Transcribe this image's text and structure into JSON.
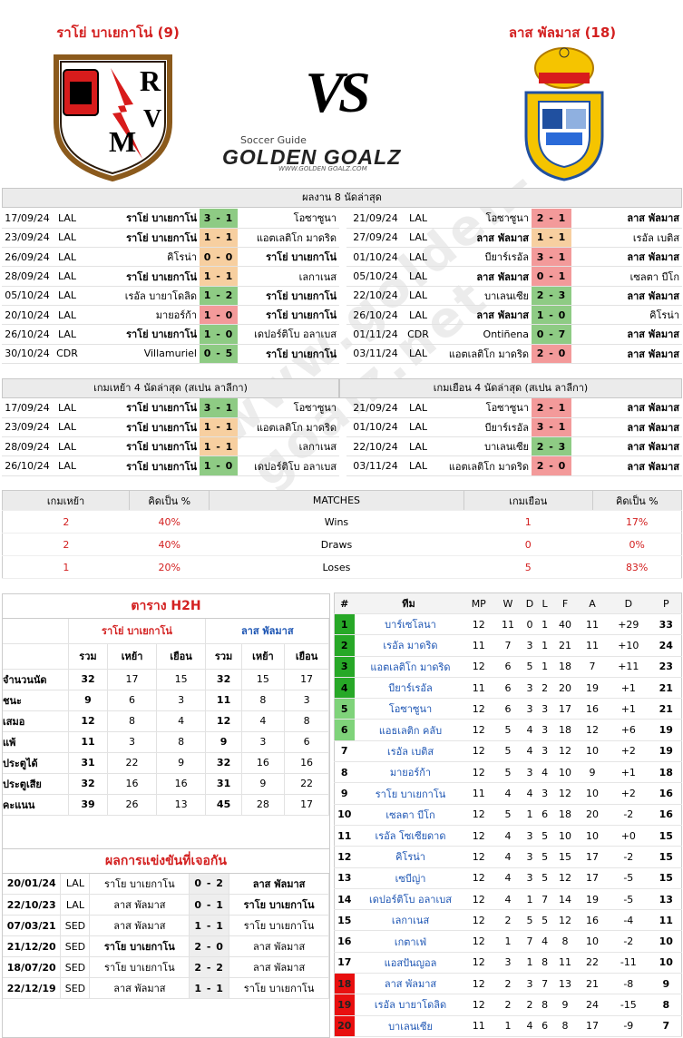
{
  "header": {
    "home_title": "ราโย่ บาเยกาโน่ (9)",
    "away_title": "ลาส พัลมาส (18)",
    "vs": "VS",
    "brand_top": "Soccer Guide",
    "brand": "GOLDEN GOALZ",
    "brand_url": "WWW.GOLDEN GOALZ.COM"
  },
  "home_logo_letters": "RVM",
  "last8": {
    "title": "ผลงาน 8 นัดล่าสุด",
    "home": [
      [
        "17/09/24",
        "LAL",
        "ราโย่ บาเยกาโน่",
        "3 - 1",
        "โอซาซูนา",
        "w",
        "h"
      ],
      [
        "23/09/24",
        "LAL",
        "ราโย่ บาเยกาโน่",
        "1 - 1",
        "แอตเลติโก มาดริด",
        "d",
        "h"
      ],
      [
        "26/09/24",
        "LAL",
        "คิโรน่า",
        "0 - 0",
        "ราโย่ บาเยกาโน่",
        "d",
        "a"
      ],
      [
        "28/09/24",
        "LAL",
        "ราโย่ บาเยกาโน่",
        "1 - 1",
        "เลกาเนส",
        "d",
        "h"
      ],
      [
        "05/10/24",
        "LAL",
        "เรอัล บายาโดลิด",
        "1 - 2",
        "ราโย่ บาเยกาโน่",
        "w",
        "a"
      ],
      [
        "20/10/24",
        "LAL",
        "มายอร์ก้า",
        "1 - 0",
        "ราโย่ บาเยกาโน่",
        "L",
        "a"
      ],
      [
        "26/10/24",
        "LAL",
        "ราโย่ บาเยกาโน่",
        "1 - 0",
        "เดปอร์ติโบ อลาเบส",
        "w",
        "h"
      ],
      [
        "30/10/24",
        "CDR",
        "Villamuriel",
        "0 - 5",
        "ราโย่ บาเยกาโน่",
        "w",
        "a"
      ]
    ],
    "away": [
      [
        "21/09/24",
        "LAL",
        "โอซาซูนา",
        "2 - 1",
        "ลาส พัลมาส",
        "L",
        "a"
      ],
      [
        "27/09/24",
        "LAL",
        "ลาส พัลมาส",
        "1 - 1",
        "เรอัล เบติส",
        "d",
        "h"
      ],
      [
        "01/10/24",
        "LAL",
        "บียาร์เรอัล",
        "3 - 1",
        "ลาส พัลมาส",
        "L",
        "a"
      ],
      [
        "05/10/24",
        "LAL",
        "ลาส พัลมาส",
        "0 - 1",
        "เซลตา บีโก",
        "L",
        "h"
      ],
      [
        "22/10/24",
        "LAL",
        "บาเลนเซีย",
        "2 - 3",
        "ลาส พัลมาส",
        "w",
        "a"
      ],
      [
        "26/10/24",
        "LAL",
        "ลาส พัลมาส",
        "1 - 0",
        "คิโรน่า",
        "w",
        "h"
      ],
      [
        "01/11/24",
        "CDR",
        "Ontiñena",
        "0 - 7",
        "ลาส พัลมาส",
        "w",
        "a"
      ],
      [
        "03/11/24",
        "LAL",
        "แอตเลติโก มาดริด",
        "2 - 0",
        "ลาส พัลมาส",
        "L",
        "a"
      ]
    ]
  },
  "last4": {
    "home_title": "เกมเหย้า 4 นัดล่าสุด (สเปน ลาลีกา)",
    "away_title": "เกมเยือน 4 นัดล่าสุด (สเปน ลาลีกา)",
    "home": [
      [
        "17/09/24",
        "LAL",
        "ราโย่ บาเยกาโน่",
        "3 - 1",
        "โอซาซูนา",
        "w",
        "h"
      ],
      [
        "23/09/24",
        "LAL",
        "ราโย่ บาเยกาโน่",
        "1 - 1",
        "แอตเลติโก มาดริด",
        "d",
        "h"
      ],
      [
        "28/09/24",
        "LAL",
        "ราโย่ บาเยกาโน่",
        "1 - 1",
        "เลกาเนส",
        "d",
        "h"
      ],
      [
        "26/10/24",
        "LAL",
        "ราโย่ บาเยกาโน่",
        "1 - 0",
        "เดปอร์ติโบ อลาเบส",
        "w",
        "h"
      ]
    ],
    "away": [
      [
        "21/09/24",
        "LAL",
        "โอซาซูนา",
        "2 - 1",
        "ลาส พัลมาส",
        "L",
        "a"
      ],
      [
        "01/10/24",
        "LAL",
        "บียาร์เรอัล",
        "3 - 1",
        "ลาส พัลมาส",
        "L",
        "a"
      ],
      [
        "22/10/24",
        "LAL",
        "บาเลนเซีย",
        "2 - 3",
        "ลาส พัลมาส",
        "w",
        "a"
      ],
      [
        "03/11/24",
        "LAL",
        "แอตเลติโก มาดริด",
        "2 - 0",
        "ลาส พัลมาส",
        "L",
        "a"
      ]
    ]
  },
  "summary": {
    "headers": [
      "เกมเหย้า",
      "คิดเป็น %",
      "MATCHES",
      "เกมเยือน",
      "คิดเป็น %"
    ],
    "rows": [
      [
        "2",
        "40%",
        "Wins",
        "1",
        "17%"
      ],
      [
        "2",
        "40%",
        "Draws",
        "0",
        "0%"
      ],
      [
        "1",
        "20%",
        "Loses",
        "5",
        "83%"
      ]
    ]
  },
  "h2h_table": {
    "title": "ตาราง H2H",
    "home": "ราโย่ บาเยกาโน่",
    "away": "ลาส พัลมาส",
    "sub": [
      "รวม",
      "เหย้า",
      "เยือน",
      "รวม",
      "เหย้า",
      "เยือน"
    ],
    "rows": [
      [
        "จำนวนนัด",
        "32",
        "17",
        "15",
        "32",
        "15",
        "17"
      ],
      [
        "ชนะ",
        "9",
        "6",
        "3",
        "11",
        "8",
        "3"
      ],
      [
        "เสมอ",
        "12",
        "8",
        "4",
        "12",
        "4",
        "8"
      ],
      [
        "แพ้",
        "11",
        "3",
        "8",
        "9",
        "3",
        "6"
      ],
      [
        "ประตูได้",
        "31",
        "22",
        "9",
        "32",
        "16",
        "16"
      ],
      [
        "ประตูเสีย",
        "32",
        "16",
        "16",
        "31",
        "9",
        "22"
      ],
      [
        "คะแนน",
        "39",
        "26",
        "13",
        "45",
        "28",
        "17"
      ]
    ]
  },
  "h2h_results": {
    "title": "ผลการแข่งขันที่เจอกัน",
    "rows": [
      [
        "20/01/24",
        "LAL",
        "ราโย บาเยกาโน",
        "0 - 2",
        "ลาส พัลมาส",
        "a"
      ],
      [
        "22/10/23",
        "LAL",
        "ลาส พัลมาส",
        "0 - 1",
        "ราโย บาเยกาโน",
        "a"
      ],
      [
        "07/03/21",
        "SED",
        "ลาส พัลมาส",
        "1 - 1",
        "ราโย บาเยกาโน",
        "n"
      ],
      [
        "21/12/20",
        "SED",
        "ราโย บาเยกาโน",
        "2 - 0",
        "ลาส พัลมาส",
        "h"
      ],
      [
        "18/07/20",
        "SED",
        "ราโย บาเยกาโน",
        "2 - 2",
        "ลาส พัลมาส",
        "n"
      ],
      [
        "22/12/19",
        "SED",
        "ลาส พัลมาส",
        "1 - 1",
        "ราโย บาเยกาโน",
        "n"
      ]
    ]
  },
  "standings": {
    "headers": [
      "#",
      "ทีม",
      "MP",
      "W",
      "D",
      "L",
      "F",
      "A",
      "D",
      "P"
    ],
    "rows": [
      [
        "1",
        "บาร์เซโลนา",
        "12",
        "11",
        "0",
        "1",
        "40",
        "11",
        "+29",
        "33",
        "g"
      ],
      [
        "2",
        "เรอัล มาดริด",
        "11",
        "7",
        "3",
        "1",
        "21",
        "11",
        "+10",
        "24",
        "g"
      ],
      [
        "3",
        "แอตเลติโก มาดริด",
        "12",
        "6",
        "5",
        "1",
        "18",
        "7",
        "+11",
        "23",
        "g"
      ],
      [
        "4",
        "บียาร์เรอัล",
        "11",
        "6",
        "3",
        "2",
        "20",
        "19",
        "+1",
        "21",
        "g"
      ],
      [
        "5",
        "โอซาซูนา",
        "12",
        "6",
        "3",
        "3",
        "17",
        "16",
        "+1",
        "21",
        "lg"
      ],
      [
        "6",
        "แอธเลติก คลับ",
        "12",
        "5",
        "4",
        "3",
        "18",
        "12",
        "+6",
        "19",
        "lg"
      ],
      [
        "7",
        "เรอัล เบติส",
        "12",
        "5",
        "4",
        "3",
        "12",
        "10",
        "+2",
        "19",
        ""
      ],
      [
        "8",
        "มายอร์ก้า",
        "12",
        "5",
        "3",
        "4",
        "10",
        "9",
        "+1",
        "18",
        ""
      ],
      [
        "9",
        "ราโย บาเยกาโน",
        "11",
        "4",
        "4",
        "3",
        "12",
        "10",
        "+2",
        "16",
        ""
      ],
      [
        "10",
        "เซลตา บีโก",
        "12",
        "5",
        "1",
        "6",
        "18",
        "20",
        "-2",
        "16",
        ""
      ],
      [
        "11",
        "เรอัล โซเซียดาด",
        "12",
        "4",
        "3",
        "5",
        "10",
        "10",
        "+0",
        "15",
        ""
      ],
      [
        "12",
        "คิโรน่า",
        "12",
        "4",
        "3",
        "5",
        "15",
        "17",
        "-2",
        "15",
        ""
      ],
      [
        "13",
        "เซบีญ่า",
        "12",
        "4",
        "3",
        "5",
        "12",
        "17",
        "-5",
        "15",
        ""
      ],
      [
        "14",
        "เดปอร์ติโบ อลาเบส",
        "12",
        "4",
        "1",
        "7",
        "14",
        "19",
        "-5",
        "13",
        ""
      ],
      [
        "15",
        "เลกาเนส",
        "12",
        "2",
        "5",
        "5",
        "12",
        "16",
        "-4",
        "11",
        ""
      ],
      [
        "16",
        "เกตาเฟ่",
        "12",
        "1",
        "7",
        "4",
        "8",
        "10",
        "-2",
        "10",
        ""
      ],
      [
        "17",
        "แอสปันญอล",
        "12",
        "3",
        "1",
        "8",
        "11",
        "22",
        "-11",
        "10",
        ""
      ],
      [
        "18",
        "ลาส พัลมาส",
        "12",
        "2",
        "3",
        "7",
        "13",
        "21",
        "-8",
        "9",
        "rd"
      ],
      [
        "19",
        "เรอัล บายาโดลิด",
        "12",
        "2",
        "2",
        "8",
        "9",
        "24",
        "-15",
        "8",
        "rd"
      ],
      [
        "20",
        "บาเลนเซีย",
        "11",
        "1",
        "4",
        "6",
        "8",
        "17",
        "-9",
        "7",
        "rd"
      ]
    ]
  },
  "colors": {
    "win": "#8ecb84",
    "draw": "#f7cfa0",
    "loss": "#f39a9a",
    "title_red": "#d32020",
    "team_blue": "#1d55b3",
    "cl_green": "#27a827",
    "el_green": "#7fd37a",
    "releg_red": "#e80f0f"
  }
}
